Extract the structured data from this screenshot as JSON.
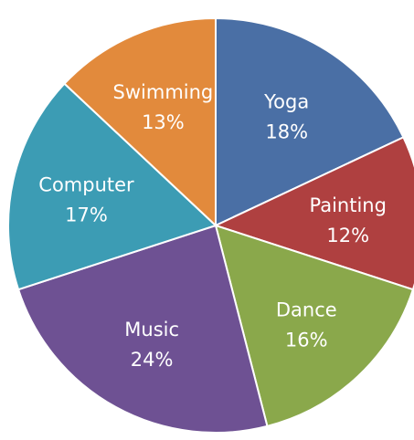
{
  "chart_data": {
    "type": "pie",
    "title": "",
    "start_angle_deg": 0,
    "direction": "clockwise",
    "categories": [
      "Yoga",
      "Painting",
      "Dance",
      "Music",
      "Computer",
      "Swimming"
    ],
    "values": [
      18,
      12,
      16,
      24,
      17,
      13
    ],
    "value_labels": [
      "18%",
      "12%",
      "16%",
      "24%",
      "17%",
      "13%"
    ],
    "colors": [
      "#4A6FA5",
      "#AF4040",
      "#8AA84B",
      "#6E5193",
      "#3C9CB4",
      "#E28A3C"
    ],
    "label_color": "#ffffff",
    "legend": "none",
    "data_labels": "inside"
  }
}
